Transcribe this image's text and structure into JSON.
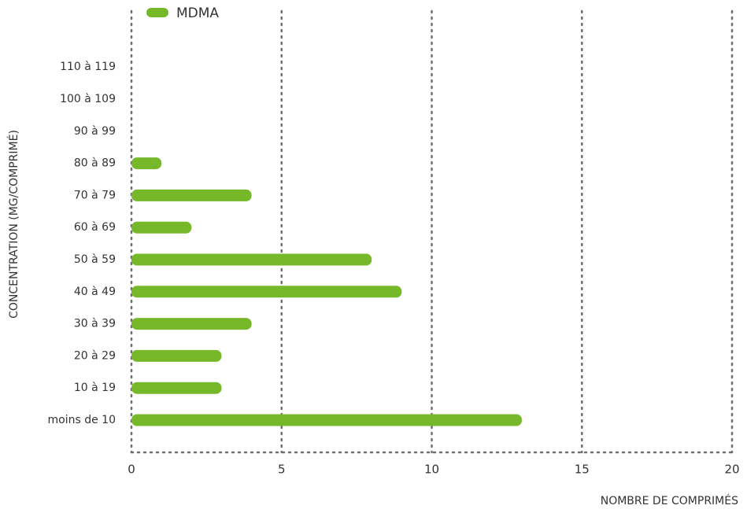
{
  "chart_data": {
    "type": "barh",
    "categories": [
      "moins de 10",
      "10 à 19",
      "20 à 29",
      "30 à 39",
      "40 à 49",
      "50 à 59",
      "60 à 69",
      "70 à 79",
      "80 à 89",
      "90 à 99",
      "100 à 109",
      "110 à 119"
    ],
    "series": [
      {
        "name": "MDMA",
        "color": "#76b82a",
        "values": [
          13,
          3,
          3,
          4,
          9,
          8,
          2,
          4,
          1,
          0,
          0,
          0
        ]
      }
    ],
    "xlim": [
      0,
      20
    ],
    "xticks": [
      0,
      5,
      10,
      15,
      20
    ],
    "xlabel": "NOMBRE DE COMPRIMÉS",
    "ylabel": "CONCENTRATION (MG/COMPRIMÉ)",
    "grid": true,
    "legend": "top-left"
  }
}
